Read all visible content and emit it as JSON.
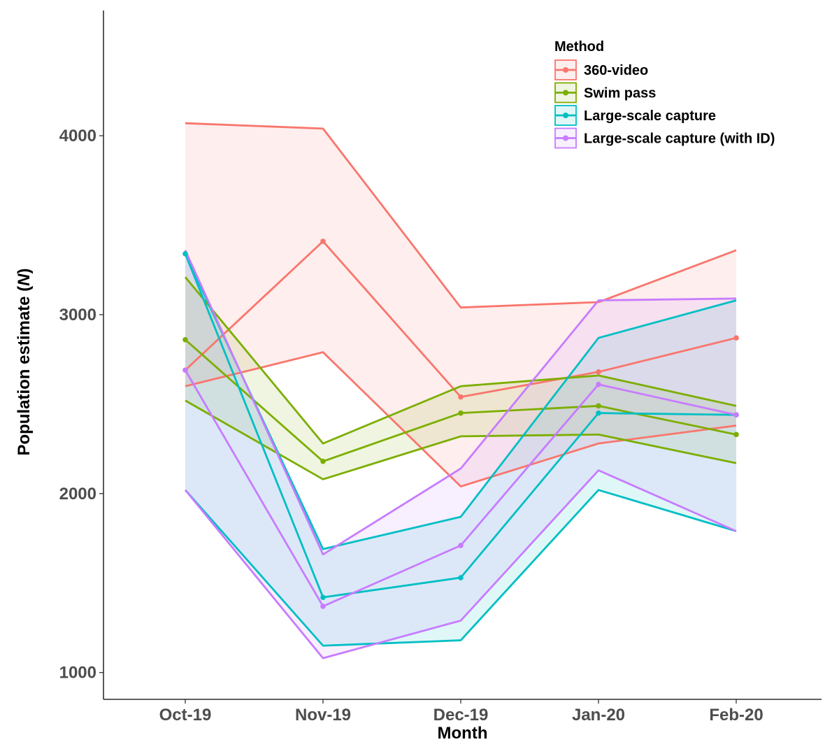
{
  "chart_data": {
    "type": "line",
    "title": "",
    "xlabel": "Month",
    "ylabel": "Population estimate (N)",
    "categories": [
      "Oct-19",
      "Nov-19",
      "Dec-19",
      "Jan-20",
      "Feb-20"
    ],
    "ylim": [
      850,
      4700
    ],
    "yticks": [
      1000,
      2000,
      3000,
      4000
    ],
    "grid": false,
    "legend": {
      "title": "Method",
      "position": "top-right"
    },
    "series": [
      {
        "name": "360-video",
        "color": "#f8766d",
        "values": [
          2690,
          3410,
          2540,
          2680,
          2870
        ],
        "lower": [
          2600,
          2790,
          2040,
          2280,
          2380
        ],
        "upper": [
          4070,
          4040,
          3040,
          3070,
          3360
        ]
      },
      {
        "name": "Swim pass",
        "color": "#7cae00",
        "values": [
          2860,
          2180,
          2450,
          2490,
          2330
        ],
        "lower": [
          2520,
          2080,
          2320,
          2330,
          2170
        ],
        "upper": [
          3210,
          2280,
          2600,
          2660,
          2490
        ]
      },
      {
        "name": "Large-scale capture",
        "color": "#00bfc4",
        "values": [
          3340,
          1420,
          1530,
          2450,
          2440
        ],
        "lower": [
          2020,
          1150,
          1180,
          2020,
          1790
        ],
        "upper": [
          3340,
          1690,
          1870,
          2870,
          3080
        ]
      },
      {
        "name": "Large-scale capture (with ID)",
        "color": "#c77cff",
        "values": [
          2690,
          1370,
          1710,
          2610,
          2440
        ],
        "lower": [
          2020,
          1080,
          1290,
          2130,
          1790
        ],
        "upper": [
          3360,
          1660,
          2140,
          3080,
          3090
        ]
      }
    ]
  }
}
